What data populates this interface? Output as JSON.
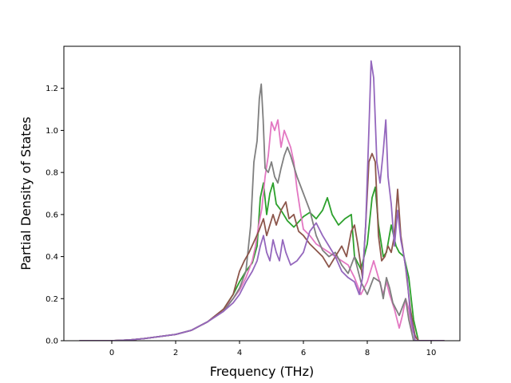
{
  "chart_data": {
    "type": "line",
    "title": "",
    "xlabel": "Frequency (THz)",
    "ylabel": "Partial Density of States",
    "xlim": [
      -1.5,
      10.9
    ],
    "ylim": [
      0,
      1.4
    ],
    "xticks": [
      0,
      2,
      4,
      6,
      8,
      10
    ],
    "yticks": [
      0.0,
      0.2,
      0.4,
      0.6,
      0.8,
      1.0,
      1.2
    ],
    "grid": false,
    "legend": "none",
    "series": [
      {
        "color": "#2ca02c",
        "points": [
          [
            -1.0,
            0
          ],
          [
            0,
            0
          ],
          [
            0.5,
            0.003
          ],
          [
            1.0,
            0.01
          ],
          [
            1.5,
            0.02
          ],
          [
            2.0,
            0.03
          ],
          [
            2.5,
            0.05
          ],
          [
            3.0,
            0.09
          ],
          [
            3.5,
            0.15
          ],
          [
            3.8,
            0.22
          ],
          [
            4.0,
            0.28
          ],
          [
            4.2,
            0.33
          ],
          [
            4.4,
            0.37
          ],
          [
            4.55,
            0.45
          ],
          [
            4.65,
            0.68
          ],
          [
            4.75,
            0.75
          ],
          [
            4.85,
            0.6
          ],
          [
            4.95,
            0.7
          ],
          [
            5.05,
            0.75
          ],
          [
            5.15,
            0.65
          ],
          [
            5.3,
            0.62
          ],
          [
            5.5,
            0.57
          ],
          [
            5.7,
            0.54
          ],
          [
            6.0,
            0.59
          ],
          [
            6.2,
            0.61
          ],
          [
            6.4,
            0.58
          ],
          [
            6.6,
            0.62
          ],
          [
            6.75,
            0.68
          ],
          [
            6.9,
            0.6
          ],
          [
            7.1,
            0.55
          ],
          [
            7.3,
            0.58
          ],
          [
            7.5,
            0.6
          ],
          [
            7.6,
            0.4
          ],
          [
            7.8,
            0.34
          ],
          [
            8.0,
            0.46
          ],
          [
            8.15,
            0.68
          ],
          [
            8.25,
            0.73
          ],
          [
            8.35,
            0.55
          ],
          [
            8.5,
            0.4
          ],
          [
            8.6,
            0.42
          ],
          [
            8.75,
            0.55
          ],
          [
            8.9,
            0.45
          ],
          [
            9.0,
            0.42
          ],
          [
            9.15,
            0.4
          ],
          [
            9.3,
            0.3
          ],
          [
            9.45,
            0.1
          ],
          [
            9.6,
            0.0
          ],
          [
            10.4,
            0.0
          ]
        ]
      },
      {
        "color": "#e377c2",
        "points": [
          [
            -1.0,
            0
          ],
          [
            0,
            0
          ],
          [
            0.5,
            0.003
          ],
          [
            1.0,
            0.01
          ],
          [
            1.5,
            0.02
          ],
          [
            2.0,
            0.03
          ],
          [
            2.5,
            0.05
          ],
          [
            3.0,
            0.09
          ],
          [
            3.5,
            0.15
          ],
          [
            3.8,
            0.2
          ],
          [
            4.0,
            0.24
          ],
          [
            4.2,
            0.3
          ],
          [
            4.4,
            0.38
          ],
          [
            4.5,
            0.45
          ],
          [
            4.6,
            0.55
          ],
          [
            4.7,
            0.63
          ],
          [
            4.8,
            0.78
          ],
          [
            4.9,
            0.88
          ],
          [
            5.0,
            1.04
          ],
          [
            5.1,
            1.0
          ],
          [
            5.2,
            1.05
          ],
          [
            5.3,
            0.92
          ],
          [
            5.4,
            1.0
          ],
          [
            5.5,
            0.96
          ],
          [
            5.6,
            0.92
          ],
          [
            5.7,
            0.85
          ],
          [
            5.8,
            0.72
          ],
          [
            5.9,
            0.62
          ],
          [
            6.0,
            0.53
          ],
          [
            6.2,
            0.5
          ],
          [
            6.4,
            0.46
          ],
          [
            6.6,
            0.44
          ],
          [
            6.8,
            0.42
          ],
          [
            7.0,
            0.4
          ],
          [
            7.2,
            0.38
          ],
          [
            7.4,
            0.36
          ],
          [
            7.6,
            0.3
          ],
          [
            7.8,
            0.22
          ],
          [
            8.0,
            0.28
          ],
          [
            8.2,
            0.38
          ],
          [
            8.35,
            0.3
          ],
          [
            8.5,
            0.22
          ],
          [
            8.6,
            0.28
          ],
          [
            8.7,
            0.22
          ],
          [
            8.85,
            0.15
          ],
          [
            9.0,
            0.06
          ],
          [
            9.1,
            0.12
          ],
          [
            9.2,
            0.2
          ],
          [
            9.3,
            0.15
          ],
          [
            9.4,
            0.05
          ],
          [
            9.6,
            0.0
          ],
          [
            10.4,
            0.0
          ]
        ]
      },
      {
        "color": "#7f7f7f",
        "points": [
          [
            -1.0,
            0
          ],
          [
            0,
            0
          ],
          [
            0.5,
            0.003
          ],
          [
            1.0,
            0.01
          ],
          [
            1.5,
            0.02
          ],
          [
            2.0,
            0.03
          ],
          [
            2.5,
            0.05
          ],
          [
            3.0,
            0.09
          ],
          [
            3.5,
            0.14
          ],
          [
            3.8,
            0.2
          ],
          [
            4.0,
            0.25
          ],
          [
            4.2,
            0.33
          ],
          [
            4.35,
            0.55
          ],
          [
            4.45,
            0.85
          ],
          [
            4.55,
            0.95
          ],
          [
            4.62,
            1.15
          ],
          [
            4.68,
            1.22
          ],
          [
            4.74,
            1.05
          ],
          [
            4.8,
            0.82
          ],
          [
            4.9,
            0.8
          ],
          [
            5.0,
            0.85
          ],
          [
            5.1,
            0.78
          ],
          [
            5.2,
            0.75
          ],
          [
            5.3,
            0.82
          ],
          [
            5.4,
            0.88
          ],
          [
            5.5,
            0.92
          ],
          [
            5.6,
            0.88
          ],
          [
            5.7,
            0.83
          ],
          [
            5.8,
            0.78
          ],
          [
            6.0,
            0.7
          ],
          [
            6.2,
            0.62
          ],
          [
            6.4,
            0.5
          ],
          [
            6.6,
            0.43
          ],
          [
            6.8,
            0.4
          ],
          [
            7.0,
            0.42
          ],
          [
            7.2,
            0.36
          ],
          [
            7.4,
            0.32
          ],
          [
            7.6,
            0.4
          ],
          [
            7.8,
            0.28
          ],
          [
            8.0,
            0.22
          ],
          [
            8.2,
            0.3
          ],
          [
            8.4,
            0.28
          ],
          [
            8.5,
            0.2
          ],
          [
            8.6,
            0.3
          ],
          [
            8.7,
            0.25
          ],
          [
            8.8,
            0.18
          ],
          [
            9.0,
            0.12
          ],
          [
            9.2,
            0.2
          ],
          [
            9.3,
            0.1
          ],
          [
            9.45,
            0.0
          ],
          [
            10.4,
            0.0
          ]
        ]
      },
      {
        "color": "#8c564b",
        "points": [
          [
            -1.0,
            0
          ],
          [
            0,
            0
          ],
          [
            0.5,
            0.003
          ],
          [
            1.0,
            0.01
          ],
          [
            1.5,
            0.02
          ],
          [
            2.0,
            0.03
          ],
          [
            2.5,
            0.05
          ],
          [
            3.0,
            0.09
          ],
          [
            3.5,
            0.15
          ],
          [
            3.8,
            0.22
          ],
          [
            4.0,
            0.33
          ],
          [
            4.15,
            0.38
          ],
          [
            4.3,
            0.42
          ],
          [
            4.45,
            0.47
          ],
          [
            4.6,
            0.52
          ],
          [
            4.75,
            0.58
          ],
          [
            4.85,
            0.5
          ],
          [
            4.95,
            0.55
          ],
          [
            5.05,
            0.6
          ],
          [
            5.15,
            0.55
          ],
          [
            5.3,
            0.62
          ],
          [
            5.45,
            0.66
          ],
          [
            5.55,
            0.58
          ],
          [
            5.7,
            0.6
          ],
          [
            5.85,
            0.52
          ],
          [
            6.0,
            0.5
          ],
          [
            6.2,
            0.46
          ],
          [
            6.4,
            0.43
          ],
          [
            6.6,
            0.4
          ],
          [
            6.8,
            0.35
          ],
          [
            7.0,
            0.4
          ],
          [
            7.2,
            0.45
          ],
          [
            7.35,
            0.4
          ],
          [
            7.5,
            0.52
          ],
          [
            7.6,
            0.55
          ],
          [
            7.7,
            0.46
          ],
          [
            7.85,
            0.3
          ],
          [
            7.95,
            0.55
          ],
          [
            8.05,
            0.85
          ],
          [
            8.15,
            0.89
          ],
          [
            8.25,
            0.85
          ],
          [
            8.35,
            0.5
          ],
          [
            8.45,
            0.38
          ],
          [
            8.55,
            0.4
          ],
          [
            8.65,
            0.45
          ],
          [
            8.75,
            0.42
          ],
          [
            8.85,
            0.5
          ],
          [
            8.95,
            0.72
          ],
          [
            9.05,
            0.5
          ],
          [
            9.2,
            0.35
          ],
          [
            9.35,
            0.15
          ],
          [
            9.5,
            0.02
          ],
          [
            9.6,
            0.0
          ],
          [
            10.4,
            0.0
          ]
        ]
      },
      {
        "color": "#9467bd",
        "points": [
          [
            -1.0,
            0
          ],
          [
            0,
            0
          ],
          [
            0.5,
            0.003
          ],
          [
            1.0,
            0.01
          ],
          [
            1.5,
            0.02
          ],
          [
            2.0,
            0.03
          ],
          [
            2.5,
            0.05
          ],
          [
            3.0,
            0.09
          ],
          [
            3.5,
            0.14
          ],
          [
            3.8,
            0.18
          ],
          [
            4.0,
            0.22
          ],
          [
            4.2,
            0.28
          ],
          [
            4.4,
            0.33
          ],
          [
            4.55,
            0.38
          ],
          [
            4.65,
            0.45
          ],
          [
            4.75,
            0.5
          ],
          [
            4.85,
            0.42
          ],
          [
            4.95,
            0.38
          ],
          [
            5.05,
            0.48
          ],
          [
            5.15,
            0.42
          ],
          [
            5.25,
            0.38
          ],
          [
            5.35,
            0.48
          ],
          [
            5.45,
            0.42
          ],
          [
            5.6,
            0.36
          ],
          [
            5.8,
            0.38
          ],
          [
            6.0,
            0.42
          ],
          [
            6.2,
            0.52
          ],
          [
            6.4,
            0.56
          ],
          [
            6.6,
            0.5
          ],
          [
            6.8,
            0.45
          ],
          [
            7.0,
            0.4
          ],
          [
            7.2,
            0.33
          ],
          [
            7.4,
            0.3
          ],
          [
            7.6,
            0.28
          ],
          [
            7.75,
            0.22
          ],
          [
            7.85,
            0.3
          ],
          [
            7.95,
            0.55
          ],
          [
            8.05,
            1.0
          ],
          [
            8.12,
            1.33
          ],
          [
            8.2,
            1.25
          ],
          [
            8.3,
            0.85
          ],
          [
            8.4,
            0.75
          ],
          [
            8.5,
            0.9
          ],
          [
            8.58,
            1.05
          ],
          [
            8.65,
            0.78
          ],
          [
            8.75,
            0.65
          ],
          [
            8.85,
            0.45
          ],
          [
            8.95,
            0.62
          ],
          [
            9.05,
            0.48
          ],
          [
            9.15,
            0.4
          ],
          [
            9.25,
            0.3
          ],
          [
            9.35,
            0.12
          ],
          [
            9.5,
            0.0
          ],
          [
            10.4,
            0.0
          ]
        ]
      }
    ]
  }
}
